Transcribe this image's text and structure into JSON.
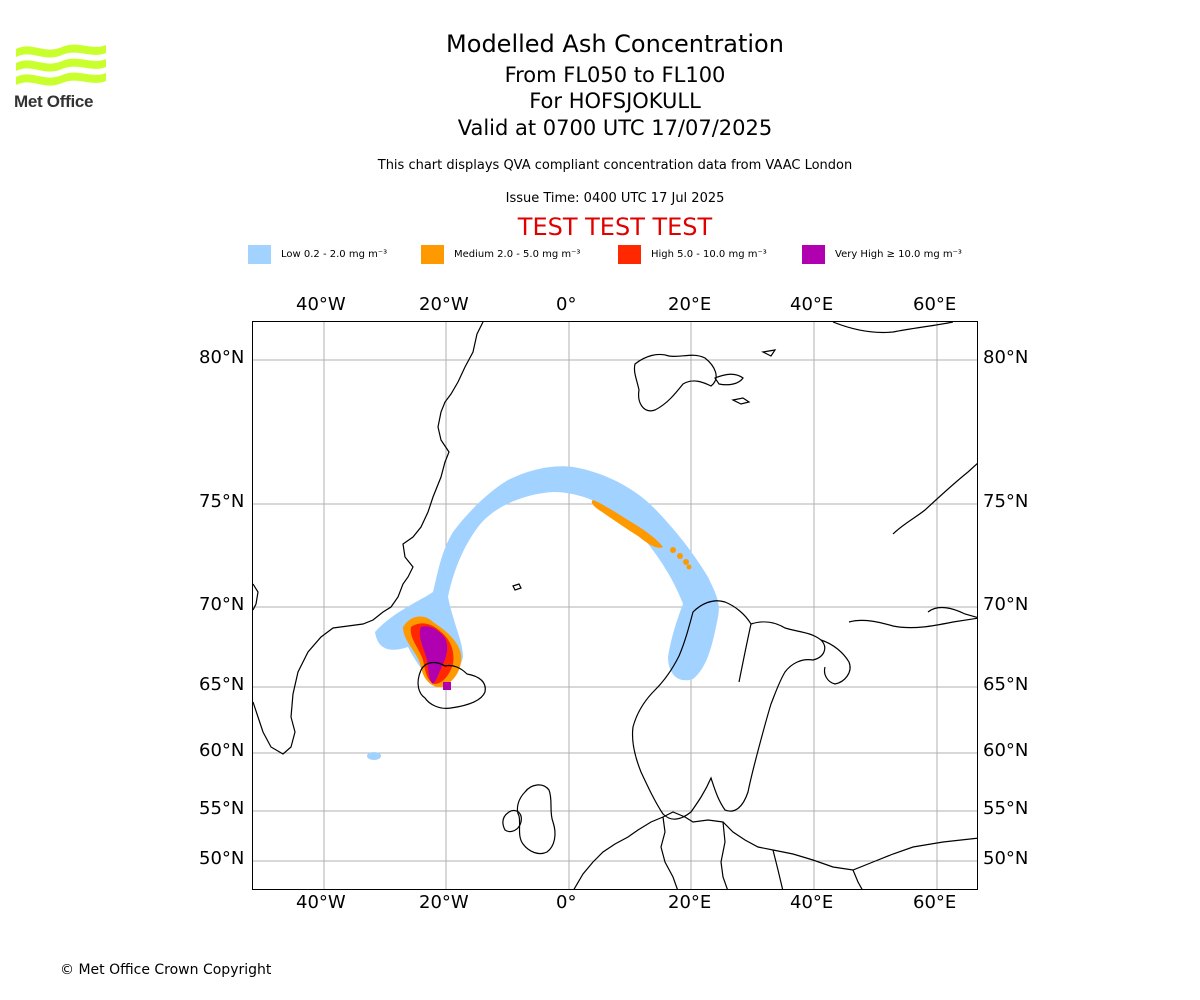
{
  "header": {
    "title": "Modelled Ash Concentration",
    "levels": "From FL050 to FL100",
    "volcano": "For HOFSJOKULL",
    "valid": "Valid at 0700 UTC 17/07/2025",
    "description": "This chart displays QVA compliant concentration data from VAAC London",
    "issue_time": "Issue Time: 0400 UTC 17 Jul 2025",
    "banner": "TEST TEST TEST"
  },
  "logo": {
    "text": "Met Office",
    "color": "#c8ff2d"
  },
  "legend": [
    {
      "label": "Low 0.2 - 2.0 mg m⁻³",
      "color": "#a2d2ff"
    },
    {
      "label": "Medium 2.0 - 5.0 mg m⁻³",
      "color": "#ff9900"
    },
    {
      "label": "High 5.0 - 10.0 mg m⁻³",
      "color": "#ff2800"
    },
    {
      "label": "Very High ≥ 10.0 mg m⁻³",
      "color": "#b000b0"
    }
  ],
  "map": {
    "lon_ticks": [
      "40°W",
      "20°W",
      "0°",
      "20°E",
      "40°E",
      "60°E"
    ],
    "lat_ticks": [
      "80°N",
      "75°N",
      "70°N",
      "65°N",
      "60°N",
      "55°N",
      "50°N"
    ],
    "gridline_color": "#b0b0b0",
    "coastline_color": "#000000"
  },
  "footer": {
    "copyright": "© Met Office Crown Copyright"
  }
}
